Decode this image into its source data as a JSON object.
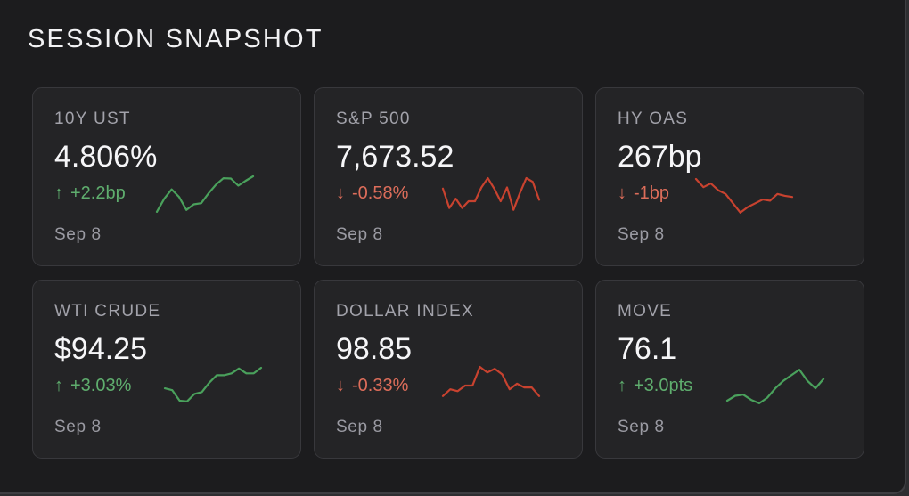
{
  "title": "SESSION SNAPSHOT",
  "colors": {
    "up": "#5fae6e",
    "down": "#dd6d5a",
    "spark_up": "#4aa15c",
    "spark_down": "#c8422f"
  },
  "cards": [
    {
      "label": "10Y UST",
      "value": "4.806%",
      "arrow": "↑",
      "change": "+2.2bp",
      "direction": "up",
      "date": "Sep 8",
      "spark": [
        0.95,
        0.6,
        0.35,
        0.55,
        0.9,
        0.75,
        0.72,
        0.45,
        0.22,
        0.05,
        0.06,
        0.25,
        0.12,
        0.0
      ]
    },
    {
      "label": "S&P 500",
      "value": "7,673.52",
      "arrow": "↓",
      "change": "-0.58%",
      "direction": "down",
      "date": "Sep 8",
      "spark": [
        0.28,
        0.8,
        0.55,
        0.8,
        0.62,
        0.62,
        0.25,
        0.0,
        0.28,
        0.62,
        0.25,
        0.85,
        0.4,
        0.0,
        0.1,
        0.58
      ]
    },
    {
      "label": "HY OAS",
      "value": "267bp",
      "arrow": "↓",
      "change": "-1bp",
      "direction": "down",
      "date": "Sep 8",
      "spark": [
        0.0,
        0.22,
        0.12,
        0.3,
        0.4,
        0.65,
        0.9,
        0.75,
        0.65,
        0.55,
        0.58,
        0.4,
        0.45,
        0.48
      ]
    },
    {
      "label": "WTI CRUDE",
      "value": "$94.25",
      "arrow": "↑",
      "change": "+3.03%",
      "direction": "up",
      "date": "Sep 8",
      "spark": [
        0.55,
        0.6,
        0.88,
        0.9,
        0.7,
        0.65,
        0.4,
        0.2,
        0.2,
        0.15,
        0.02,
        0.15,
        0.15,
        0.0
      ]
    },
    {
      "label": "DOLLAR INDEX",
      "value": "98.85",
      "arrow": "↓",
      "change": "-0.33%",
      "direction": "down",
      "date": "Sep 8",
      "spark": [
        0.78,
        0.6,
        0.65,
        0.5,
        0.5,
        0.0,
        0.15,
        0.05,
        0.2,
        0.6,
        0.45,
        0.55,
        0.55,
        0.78
      ]
    },
    {
      "label": "MOVE",
      "value": "76.1",
      "arrow": "↑",
      "change": "+3.0pts",
      "direction": "up",
      "date": "Sep 8",
      "spark": [
        0.88,
        0.75,
        0.72,
        0.86,
        0.95,
        0.8,
        0.55,
        0.35,
        0.2,
        0.05,
        0.35,
        0.55,
        0.3
      ]
    }
  ]
}
